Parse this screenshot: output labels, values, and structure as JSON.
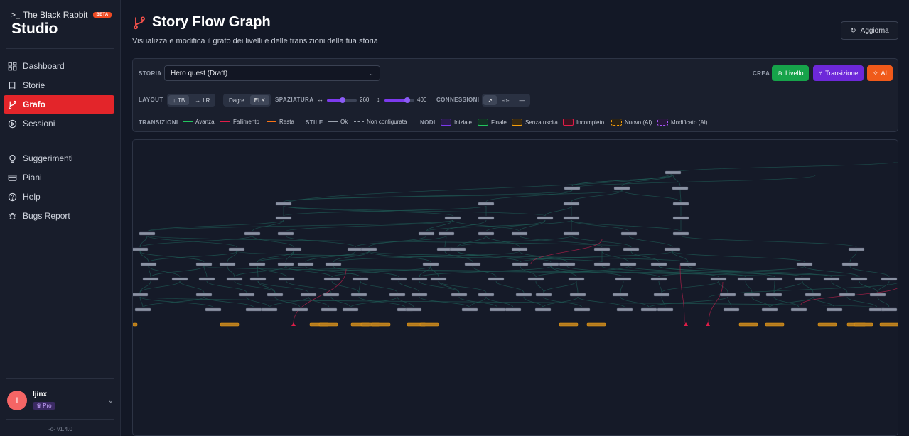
{
  "brand": {
    "small": "The Black Rabbit",
    "badge": "BETA",
    "big": "Studio"
  },
  "nav": [
    {
      "label": "Dashboard",
      "icon": "dashboard-icon"
    },
    {
      "label": "Storie",
      "icon": "book-icon"
    },
    {
      "label": "Grafo",
      "icon": "git-branch-icon",
      "active": true
    },
    {
      "label": "Sessioni",
      "icon": "play-circle-icon"
    }
  ],
  "nav2": [
    {
      "label": "Suggerimenti",
      "icon": "lightbulb-icon"
    },
    {
      "label": "Piani",
      "icon": "credit-card-icon"
    },
    {
      "label": "Help",
      "icon": "help-icon"
    },
    {
      "label": "Bugs Report",
      "icon": "bug-icon"
    }
  ],
  "user": {
    "initial": "l",
    "name": "ljinx",
    "plan": "Pro"
  },
  "version": "v1.4.0",
  "page": {
    "title": "Story Flow Graph",
    "subtitle": "Visualizza e modifica il grafo dei livelli e delle transizioni della tua storia",
    "refresh_label": "Aggiorna"
  },
  "toolbar": {
    "story_label": "STORIA",
    "story_value": "Hero quest (Draft)",
    "create_label": "CREA",
    "create_buttons": [
      "Livello",
      "Transizione",
      "AI"
    ],
    "layout_label": "LAYOUT",
    "layout_options": [
      "TB",
      "LR"
    ],
    "layout_selected": "TB",
    "engine_options": [
      "Dagre",
      "ELK"
    ],
    "engine_selected": "ELK",
    "spacing_label": "SPAZIATURA",
    "spacing_h": "260",
    "spacing_v": "400",
    "connections_label": "CONNESSIONI",
    "transitions_label": "TRANSIZIONI",
    "transitions": [
      {
        "label": "Avanza",
        "color": "#22c55e"
      },
      {
        "label": "Fallimento",
        "color": "#e11d48"
      },
      {
        "label": "Resta",
        "color": "#f97316"
      }
    ],
    "style_label": "STILE",
    "styles": [
      {
        "label": "Ok"
      },
      {
        "label": "Non configurata"
      }
    ],
    "nodes_label": "NODI",
    "nodes": [
      {
        "label": "Iniziale",
        "color": "#7c3aed"
      },
      {
        "label": "Finale",
        "color": "#22c55e"
      },
      {
        "label": "Senza uscita",
        "color": "#f59e0b"
      },
      {
        "label": "Incompleto",
        "color": "#e11d48"
      },
      {
        "label": "Nuovo (AI)",
        "color": "#f59e0b"
      },
      {
        "label": "Modificato (AI)",
        "color": "#a855f7"
      }
    ]
  },
  "colors": {
    "accent": "#e3252a",
    "purple": "#7c3aed",
    "green": "#16a34a",
    "orange": "#f97316"
  }
}
